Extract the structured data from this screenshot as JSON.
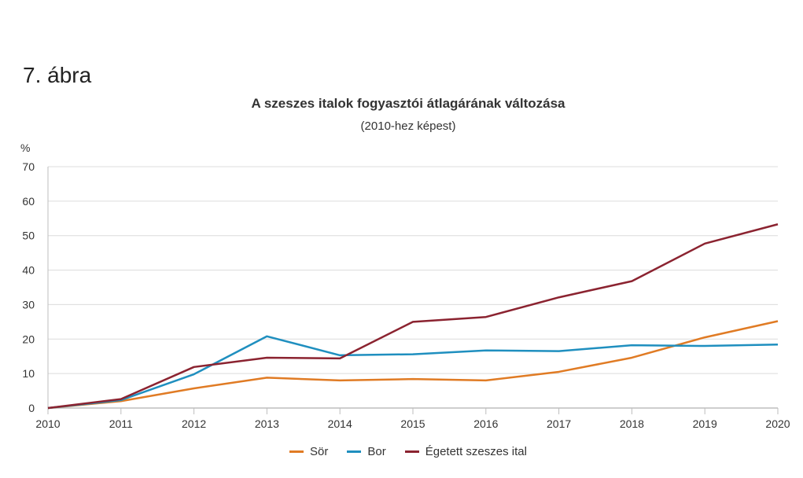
{
  "figure_label": "7. ábra",
  "chart_data": {
    "type": "line",
    "title": "A szeszes italok fogyasztói átlagárának változása",
    "subtitle": "(2010-hez képest)",
    "ylabel": "%",
    "xlabel": "",
    "ylim": [
      0,
      70
    ],
    "yticks": [
      0,
      10,
      20,
      30,
      40,
      50,
      60,
      70
    ],
    "grid": true,
    "legend_position": "bottom-center",
    "x": [
      "2010",
      "2011",
      "2012",
      "2013",
      "2014",
      "2015",
      "2016",
      "2017",
      "2018",
      "2019",
      "2020"
    ],
    "series": [
      {
        "name": "Sör",
        "color": "#E07B24",
        "values": [
          0,
          2.0,
          5.7,
          8.8,
          8.0,
          8.4,
          8.0,
          10.5,
          14.6,
          20.5,
          25.2
        ]
      },
      {
        "name": "Bor",
        "color": "#1F8FBF",
        "values": [
          0,
          2.3,
          9.8,
          20.8,
          15.3,
          15.6,
          16.7,
          16.5,
          18.2,
          18.0,
          18.4
        ]
      },
      {
        "name": "Égetett szeszes ital",
        "color": "#8B2330",
        "values": [
          0,
          2.6,
          11.9,
          14.6,
          14.4,
          25.0,
          26.4,
          32.1,
          36.8,
          47.7,
          53.3
        ]
      }
    ]
  }
}
